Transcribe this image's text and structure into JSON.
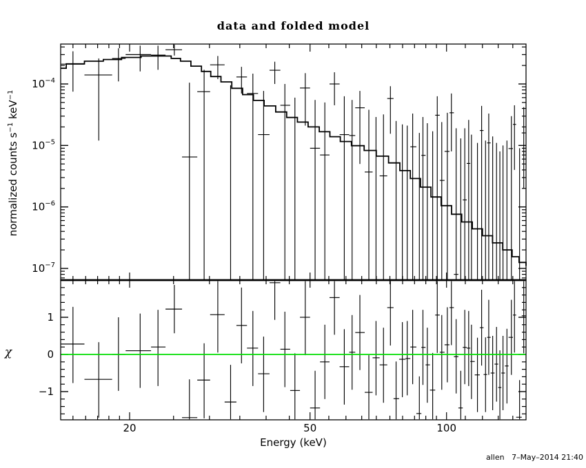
{
  "title": "data and folded model",
  "stamp": "allen   7–May–2014 21:40",
  "colors": {
    "foreground": "#000000",
    "background": "#ffffff",
    "zero_line": "#00dd00"
  },
  "chart_data": {
    "type": "scatter",
    "description": "XSPEC two-panel folded spectrum: data crosses with error bars and stepped model histogram (top, log-log); chi residuals about green zero line (bottom)",
    "xlabel": "Energy (keV)",
    "xscale": "log",
    "xlim": [
      14.1,
      149.7
    ],
    "xticks_labeled": [
      {
        "v": 20,
        "label": "20"
      },
      {
        "v": 50,
        "label": "50"
      },
      {
        "v": 100,
        "label": "100"
      }
    ],
    "xticks_minor": [
      15,
      16,
      17,
      18,
      19,
      25,
      30,
      35,
      40,
      45,
      55,
      60,
      65,
      70,
      75,
      80,
      85,
      90,
      95,
      110,
      120,
      130,
      140
    ],
    "top_panel": {
      "ylabel": "normalized counts s−1 keV−1",
      "ylabel_parts": [
        {
          "t": "normalized counts s"
        },
        {
          "t": "−1",
          "sup": true
        },
        {
          "t": " keV",
          "sup": false
        },
        {
          "t": "−1",
          "sup": true
        }
      ],
      "yscale": "log",
      "ylim": [
        6.45e-08,
        0.000446
      ],
      "yticks_labeled": [
        {
          "v": 0.0001,
          "base": "10",
          "exp": "−4"
        },
        {
          "v": 1e-05,
          "base": "10",
          "exp": "−5"
        },
        {
          "v": 1e-06,
          "base": "10",
          "exp": "−6"
        },
        {
          "v": 1e-07,
          "base": "10",
          "exp": "−7"
        }
      ],
      "model_steps": [
        [
          14.1,
          0.00018
        ],
        [
          14.5,
          0.000212
        ],
        [
          15.9,
          0.000235
        ],
        [
          17.5,
          0.00025
        ],
        [
          19.2,
          0.00027
        ],
        [
          21.2,
          0.000285
        ],
        [
          23.4,
          0.000285
        ],
        [
          24.7,
          0.00026
        ],
        [
          25.9,
          0.000235
        ],
        [
          27.3,
          0.000195
        ],
        [
          28.8,
          0.00016
        ],
        [
          30.2,
          0.000132
        ],
        [
          31.8,
          0.000108
        ],
        [
          33.6,
          8.5e-05
        ],
        [
          35.5,
          6.7e-05
        ],
        [
          37.5,
          5.4e-05
        ],
        [
          39.6,
          4.4e-05
        ],
        [
          42.0,
          3.5e-05
        ],
        [
          44.4,
          2.85e-05
        ],
        [
          46.9,
          2.4e-05
        ],
        [
          49.5,
          2e-05
        ],
        [
          52.4,
          1.67e-05
        ],
        [
          55.3,
          1.39e-05
        ],
        [
          58.3,
          1.16e-05
        ],
        [
          61.7,
          9.9e-06
        ],
        [
          65.8,
          8.3e-06
        ],
        [
          70.0,
          6.7e-06
        ],
        [
          74.5,
          5.2e-06
        ],
        [
          78.9,
          3.9e-06
        ],
        [
          83.2,
          2.9e-06
        ],
        [
          87.6,
          2.1e-06
        ],
        [
          92.4,
          1.45e-06
        ],
        [
          97.3,
          1.05e-06
        ],
        [
          102.6,
          7.6e-07
        ],
        [
          108.0,
          5.7e-07
        ],
        [
          114.0,
          4.4e-07
        ],
        [
          120.0,
          3.4e-07
        ],
        [
          126.3,
          2.6e-07
        ],
        [
          133.0,
          2e-07
        ],
        [
          139.5,
          1.55e-07
        ],
        [
          144.5,
          1.25e-07
        ],
        [
          149.7,
          1.1e-07
        ]
      ]
    },
    "bottom_panel": {
      "ylabel": "χ",
      "yscale": "linear",
      "ylim": [
        -1.76,
        2.0
      ],
      "zero_line": 0,
      "yticks_labeled": [
        {
          "v": 1,
          "label": "1"
        },
        {
          "v": 0,
          "label": "0"
        },
        {
          "v": -1,
          "label": "−1"
        }
      ],
      "yticks_minor": [
        -1.6,
        -1.4,
        -1.2,
        -0.8,
        -0.6,
        -0.4,
        -0.2,
        0.2,
        0.4,
        0.6,
        0.8,
        1.2,
        1.4,
        1.6,
        1.8
      ]
    },
    "points": [
      {
        "e": 15.0,
        "elo": 14.1,
        "ehi": 15.9,
        "v": 0.00021,
        "vlo": 7.5e-05,
        "vhi": 0.00034,
        "chi": 0.28,
        "chilo": -0.77,
        "chihi": 1.28
      },
      {
        "e": 17.1,
        "elo": 15.9,
        "ehi": 18.3,
        "v": 0.00014,
        "vlo": 1.2e-05,
        "vhi": 0.00026,
        "chi": -0.67,
        "chilo": -1.7,
        "chihi": 0.33
      },
      {
        "e": 18.9,
        "elo": 18.3,
        "ehi": 19.6,
        "v": 0.00026,
        "vlo": 0.00011,
        "vhi": 0.00038,
        "chi": 0.0,
        "chilo": -0.98,
        "chihi": 1.0
      },
      {
        "e": 21.1,
        "elo": 19.6,
        "ehi": 22.3,
        "v": 0.0003,
        "vlo": 0.00016,
        "vhi": 0.00042,
        "chi": 0.1,
        "chilo": -0.9,
        "chihi": 1.1
      },
      {
        "e": 23.1,
        "elo": 22.3,
        "ehi": 24.0,
        "v": 0.000295,
        "vlo": 0.00017,
        "vhi": 0.00042,
        "chi": 0.2,
        "chilo": -0.85,
        "chihi": 1.2
      },
      {
        "e": 25.1,
        "elo": 24.0,
        "ehi": 26.1,
        "v": 0.00036,
        "vlo": 0.00029,
        "vhi": 0.00044,
        "chi": 1.22,
        "chilo": 0.57,
        "chihi": 1.87
      },
      {
        "e": 27.1,
        "elo": 26.1,
        "ehi": 28.2,
        "v": 6.5e-06,
        "vlo": null,
        "vhi": 0.000105,
        "chi": -1.7,
        "chilo": -2.5,
        "chihi": -0.67
      },
      {
        "e": 29.2,
        "elo": 28.2,
        "ehi": 30.1,
        "v": 7.5e-05,
        "vlo": null,
        "vhi": 0.00017,
        "chi": -0.69,
        "chilo": -1.72,
        "chihi": 0.3
      },
      {
        "e": 31.3,
        "elo": 30.1,
        "ehi": 32.4,
        "v": 0.000205,
        "vlo": 0.00012,
        "vhi": 0.000285,
        "chi": 1.07,
        "chilo": 0.05,
        "chihi": 2.1
      },
      {
        "e": 33.4,
        "elo": 32.4,
        "ehi": 34.4,
        "v": null,
        "vlo": null,
        "vhi": 9.5e-05,
        "chi": -1.28,
        "chilo": -2.4,
        "chihi": -0.28
      },
      {
        "e": 35.3,
        "elo": 34.4,
        "ehi": 36.3,
        "v": 0.00013,
        "vlo": 7e-05,
        "vhi": 0.00019,
        "chi": 0.78,
        "chilo": -0.24,
        "chihi": 1.8
      },
      {
        "e": 37.4,
        "elo": 36.3,
        "ehi": 38.4,
        "v": 7e-05,
        "vlo": null,
        "vhi": 0.000147,
        "chi": 0.17,
        "chilo": -0.85,
        "chihi": 1.17
      },
      {
        "e": 39.5,
        "elo": 38.4,
        "ehi": 40.7,
        "v": 1.5e-05,
        "vlo": null,
        "vhi": 7.7e-05,
        "chi": -0.52,
        "chilo": -1.55,
        "chihi": 0.48
      },
      {
        "e": 41.8,
        "elo": 40.7,
        "ehi": 43.0,
        "v": 0.000167,
        "vlo": 0.0001,
        "vhi": 0.00023,
        "chi": 1.93,
        "chilo": 0.93,
        "chihi": 2.5
      },
      {
        "e": 44.0,
        "elo": 43.0,
        "ehi": 45.2,
        "v": 4.5e-05,
        "vlo": null,
        "vhi": 0.0001,
        "chi": 0.14,
        "chilo": -0.88,
        "chihi": 1.15
      },
      {
        "e": 46.3,
        "elo": 45.2,
        "ehi": 47.5,
        "v": null,
        "vlo": null,
        "vhi": 6e-05,
        "chi": -0.97,
        "chilo": -2.0,
        "chihi": 0.03
      },
      {
        "e": 48.8,
        "elo": 47.5,
        "ehi": 50.0,
        "v": 8.6e-05,
        "vlo": 2.1e-05,
        "vhi": 0.00015,
        "chi": 1.0,
        "chilo": -0.02,
        "chihi": 1.98
      },
      {
        "e": 51.3,
        "elo": 50.0,
        "ehi": 52.6,
        "v": 9e-06,
        "vlo": null,
        "vhi": 5.5e-05,
        "chi": -1.44,
        "chilo": -2.45,
        "chihi": -0.44
      },
      {
        "e": 53.9,
        "elo": 52.6,
        "ehi": 55.2,
        "v": 7e-06,
        "vlo": null,
        "vhi": 5e-05,
        "chi": -0.2,
        "chilo": -1.2,
        "chihi": 0.8
      },
      {
        "e": 56.6,
        "elo": 55.2,
        "ehi": 58.1,
        "v": 0.0001,
        "vlo": 4.5e-05,
        "vhi": 0.000155,
        "chi": 1.53,
        "chilo": 0.53,
        "chihi": 2.5
      },
      {
        "e": 59.5,
        "elo": 58.1,
        "ehi": 61.0,
        "v": 1.5e-05,
        "vlo": null,
        "vhi": 6.3e-05,
        "chi": -0.33,
        "chilo": -1.35,
        "chihi": 0.68
      },
      {
        "e": 61.9,
        "elo": 61.0,
        "ehi": 62.9,
        "v": 1.45e-05,
        "vlo": null,
        "vhi": 5.5e-05,
        "chi": 0.06,
        "chilo": -0.95,
        "chihi": 1.06
      },
      {
        "e": 64.4,
        "elo": 62.9,
        "ehi": 66.0,
        "v": 4.1e-05,
        "vlo": 5e-06,
        "vhi": 7.7e-05,
        "chi": 0.59,
        "chilo": -0.42,
        "chihi": 1.6
      },
      {
        "e": 67.4,
        "elo": 66.0,
        "ehi": 68.7,
        "v": 3.7e-06,
        "vlo": null,
        "vhi": 3.8e-05,
        "chi": -1.02,
        "chilo": -2.05,
        "chihi": -0.02
      },
      {
        "e": 69.9,
        "elo": 68.7,
        "ehi": 71.2,
        "v": null,
        "vlo": null,
        "vhi": 2.9e-05,
        "chi": -0.09,
        "chilo": -1.1,
        "chihi": 0.9
      },
      {
        "e": 72.6,
        "elo": 71.2,
        "ehi": 74.0,
        "v": 3.2e-06,
        "vlo": null,
        "vhi": 3.2e-05,
        "chi": -0.28,
        "chilo": -1.3,
        "chihi": 0.72
      },
      {
        "e": 75.2,
        "elo": 74.0,
        "ehi": 76.4,
        "v": 5.8e-05,
        "vlo": 1.55e-05,
        "vhi": 9.2e-05,
        "chi": 1.26,
        "chilo": 0.24,
        "chihi": 2.28
      },
      {
        "e": 77.4,
        "elo": 76.4,
        "ehi": 78.6,
        "v": null,
        "vlo": null,
        "vhi": 2.5e-05,
        "chi": -1.19,
        "chilo": -2.2,
        "chihi": -0.19
      },
      {
        "e": 79.9,
        "elo": 78.6,
        "ehi": 81.2,
        "v": null,
        "vlo": null,
        "vhi": 2.2e-05,
        "chi": -0.13,
        "chilo": -1.15,
        "chihi": 0.87
      },
      {
        "e": 81.9,
        "elo": 81.2,
        "ehi": 83.2,
        "v": null,
        "vlo": null,
        "vhi": 2.1e-05,
        "chi": -0.11,
        "chilo": -1.1,
        "chihi": 0.9
      },
      {
        "e": 84.2,
        "elo": 83.2,
        "ehi": 85.8,
        "v": 9.5e-06,
        "vlo": null,
        "vhi": 3.3e-05,
        "chi": 0.2,
        "chilo": -0.8,
        "chihi": 1.2
      },
      {
        "e": 87.1,
        "elo": 85.8,
        "ehi": 88.0,
        "v": null,
        "vlo": null,
        "vhi": 1.6e-05,
        "chi": -1.59,
        "chilo": -2.6,
        "chihi": -0.59
      },
      {
        "e": 88.7,
        "elo": 88.0,
        "ehi": 89.9,
        "v": 6.9e-06,
        "vlo": null,
        "vhi": 2.9e-05,
        "chi": 0.19,
        "chilo": -0.82,
        "chihi": 1.2
      },
      {
        "e": 90.7,
        "elo": 89.9,
        "ehi": 91.9,
        "v": null,
        "vlo": null,
        "vhi": 2.3e-05,
        "chi": -0.28,
        "chilo": -1.3,
        "chihi": 0.72
      },
      {
        "e": 93.2,
        "elo": 91.9,
        "ehi": 94.4,
        "v": null,
        "vlo": null,
        "vhi": 1.7e-05,
        "chi": -0.96,
        "chilo": -2.0,
        "chihi": 0.04
      },
      {
        "e": 95.4,
        "elo": 94.4,
        "ehi": 96.6,
        "v": 3.1e-05,
        "vlo": null,
        "vhi": 6.3e-05,
        "chi": 1.06,
        "chilo": 0.04,
        "chihi": 2.08
      },
      {
        "e": 97.6,
        "elo": 96.6,
        "ehi": 99.0,
        "v": 2.7e-06,
        "vlo": null,
        "vhi": 2.4e-05,
        "chi": 0.06,
        "chilo": -0.95,
        "chihi": 1.06
      },
      {
        "e": 100.4,
        "elo": 99.0,
        "ehi": 101.5,
        "v": 8e-06,
        "vlo": null,
        "vhi": 3.4e-05,
        "chi": 0.26,
        "chilo": -0.75,
        "chihi": 1.27
      },
      {
        "e": 102.5,
        "elo": 101.5,
        "ehi": 103.8,
        "v": 3.4e-05,
        "vlo": 8e-06,
        "vhi": 7e-05,
        "chi": 1.26,
        "chilo": 0.25,
        "chihi": 2.3
      },
      {
        "e": 105.0,
        "elo": 103.8,
        "ehi": 106.2,
        "v": 8e-08,
        "vlo": null,
        "vhi": 1.9e-05,
        "chi": -0.06,
        "chilo": -1.05,
        "chihi": 0.95
      },
      {
        "e": 107.5,
        "elo": 106.2,
        "ehi": 108.6,
        "v": null,
        "vlo": null,
        "vhi": 1.3e-05,
        "chi": -1.44,
        "chilo": -2.4,
        "chihi": -0.44
      },
      {
        "e": 109.7,
        "elo": 108.6,
        "ehi": 110.8,
        "v": 1.3e-06,
        "vlo": null,
        "vhi": 1.9e-05,
        "chi": 0.19,
        "chilo": -0.8,
        "chihi": 1.2
      },
      {
        "e": 111.9,
        "elo": 110.8,
        "ehi": 112.8,
        "v": 5.1e-06,
        "vlo": null,
        "vhi": 2.6e-05,
        "chi": 0.17,
        "chilo": -0.85,
        "chihi": 1.17
      },
      {
        "e": 113.5,
        "elo": 112.8,
        "ehi": 115.4,
        "v": null,
        "vlo": null,
        "vhi": 1.5e-05,
        "chi": -0.19,
        "chilo": -1.2,
        "chihi": 0.8
      },
      {
        "e": 117.0,
        "elo": 115.4,
        "ehi": 118.4,
        "v": null,
        "vlo": null,
        "vhi": 1.1e-05,
        "chi": -0.55,
        "chilo": -1.55,
        "chihi": 0.45
      },
      {
        "e": 119.5,
        "elo": 118.4,
        "ehi": 120.7,
        "v": 1.75e-05,
        "vlo": null,
        "vhi": 4.4e-05,
        "chi": 0.72,
        "chilo": -0.3,
        "chihi": 1.74
      },
      {
        "e": 121.9,
        "elo": 120.7,
        "ehi": 122.9,
        "v": null,
        "vlo": null,
        "vhi": 1.2e-05,
        "chi": -0.54,
        "chilo": -1.55,
        "chihi": 0.46
      },
      {
        "e": 123.9,
        "elo": 122.9,
        "ehi": 125.1,
        "v": 1.1e-05,
        "vlo": null,
        "vhi": 3.3e-05,
        "chi": 0.46,
        "chilo": -0.55,
        "chihi": 1.47
      },
      {
        "e": 126.4,
        "elo": 125.1,
        "ehi": 127.6,
        "v": null,
        "vlo": null,
        "vhi": 1.4e-05,
        "chi": -0.5,
        "chilo": -1.5,
        "chihi": 0.5
      },
      {
        "e": 128.9,
        "elo": 127.6,
        "ehi": 130.0,
        "v": null,
        "vlo": null,
        "vhi": 1.1e-05,
        "chi": -0.26,
        "chilo": -1.27,
        "chihi": 0.74
      },
      {
        "e": 131.1,
        "elo": 130.0,
        "ehi": 132.1,
        "v": null,
        "vlo": null,
        "vhi": 8e-06,
        "chi": -0.89,
        "chilo": -1.9,
        "chihi": 0.11
      },
      {
        "e": 133.2,
        "elo": 132.1,
        "ehi": 134.5,
        "v": null,
        "vlo": null,
        "vhi": 1e-05,
        "chi": -0.5,
        "chilo": -1.5,
        "chihi": 0.5
      },
      {
        "e": 135.9,
        "elo": 134.5,
        "ehi": 137.0,
        "v": null,
        "vlo": null,
        "vhi": 1.2e-05,
        "chi": -0.31,
        "chilo": -1.32,
        "chihi": 0.69
      },
      {
        "e": 139.0,
        "elo": 137.0,
        "ehi": 140.1,
        "v": 8.9e-06,
        "vlo": null,
        "vhi": 3e-05,
        "chi": 0.46,
        "chilo": -0.55,
        "chihi": 1.47
      },
      {
        "e": 141.2,
        "elo": 140.1,
        "ehi": 142.4,
        "v": 2.2e-05,
        "vlo": 4e-06,
        "vhi": 4.5e-05,
        "chi": 1.06,
        "chilo": 0.05,
        "chihi": 2.1
      },
      {
        "e": 144.9,
        "elo": 142.4,
        "ehi": 146.5,
        "v": null,
        "vlo": null,
        "vhi": 9e-06,
        "chi": -1.69,
        "chilo": -2.7,
        "chihi": -0.69
      },
      {
        "e": 148.0,
        "elo": 146.5,
        "ehi": 149.7,
        "v": 1.6e-05,
        "vlo": 2e-06,
        "vhi": 4.2e-05,
        "chi": 1.04,
        "chilo": 0.03,
        "chihi": 2.1
      }
    ]
  }
}
